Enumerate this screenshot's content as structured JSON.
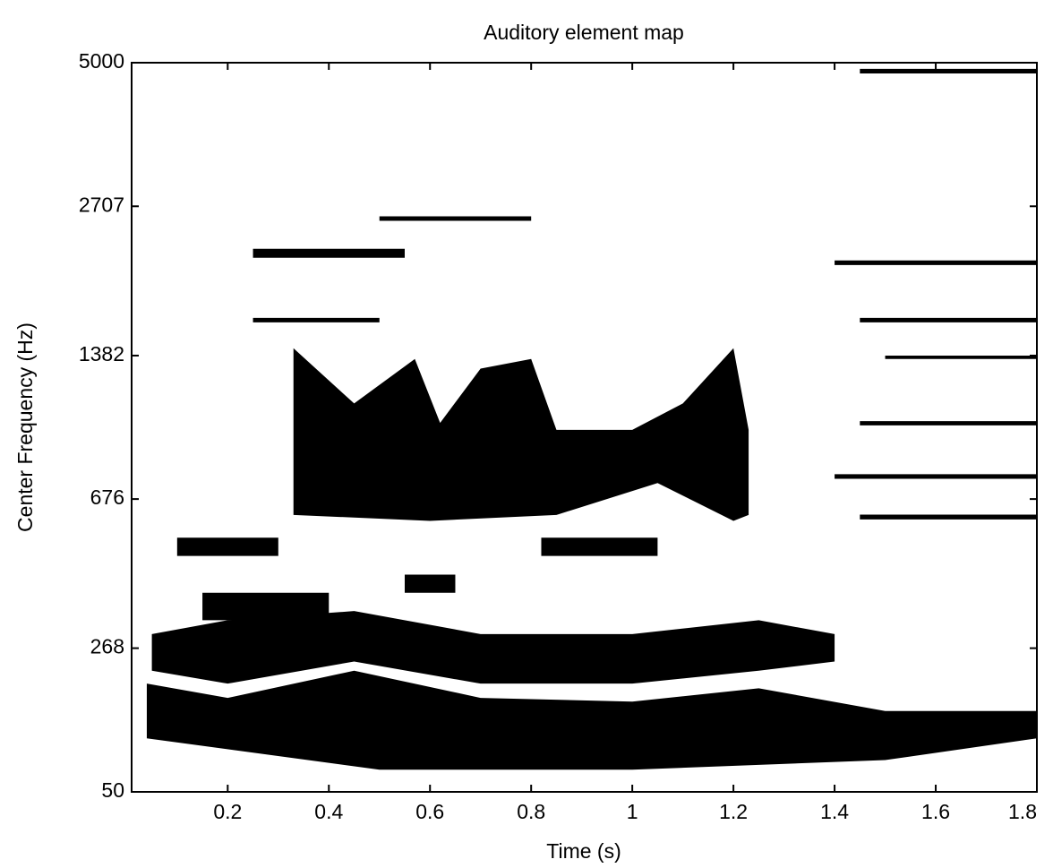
{
  "chart_data": {
    "type": "element-map",
    "title": "Auditory element map",
    "xlabel": "Time (s)",
    "ylabel": "Center Frequency (Hz)",
    "xlim": [
      0.01,
      1.8
    ],
    "xticks": [
      0.2,
      0.4,
      0.6,
      0.8,
      1,
      1.2,
      1.4,
      1.6,
      1.8
    ],
    "ylim": [
      50,
      5000
    ],
    "yticks": [
      50,
      268,
      676,
      1382,
      2707,
      5000
    ],
    "yscale": "erb",
    "color": "#000000",
    "elements": [
      {
        "t": [
          0.04,
          0.2,
          0.45,
          0.7,
          1.0,
          1.25,
          1.5,
          1.8,
          1.8,
          1.5,
          1.0,
          0.5,
          0.04
        ],
        "f": [
          202,
          178,
          225,
          178,
          172,
          194,
          157,
          157,
          117,
          88,
          76,
          76,
          117
        ]
      },
      {
        "t": [
          0.05,
          0.2,
          0.45,
          0.7,
          1.0,
          1.25,
          1.4,
          1.4,
          1.25,
          1.0,
          0.7,
          0.45,
          0.2,
          0.05
        ],
        "f": [
          297,
          327,
          348,
          297,
          297,
          327,
          297,
          242,
          225,
          202,
          202,
          242,
          202,
          225
        ]
      },
      {
        "t": [
          0.33,
          0.33,
          0.45,
          0.57,
          0.62,
          0.7,
          0.8,
          0.85,
          1.0,
          1.1,
          1.2,
          1.23,
          1.23,
          1.2,
          1.05,
          0.85,
          0.6,
          0.33
        ],
        "f": [
          600,
          1430,
          1100,
          1360,
          1000,
          1300,
          1360,
          966,
          966,
          1100,
          1430,
          966,
          620,
          600,
          736,
          620,
          600,
          620
        ]
      },
      {
        "t": [
          0.1,
          0.3,
          0.3,
          0.1
        ],
        "f": [
          546,
          546,
          491,
          491
        ]
      },
      {
        "t": [
          0.15,
          0.4,
          0.4,
          0.15
        ],
        "f": [
          392,
          392,
          327,
          327
        ]
      },
      {
        "t": [
          0.82,
          1.05,
          1.05,
          0.82
        ],
        "f": [
          546,
          546,
          491,
          491
        ]
      },
      {
        "t": [
          0.55,
          0.65,
          0.65,
          0.55
        ],
        "f": [
          439,
          439,
          392,
          392
        ]
      },
      {
        "t": [
          1.45,
          1.8,
          1.8,
          1.45
        ],
        "f": [
          4872,
          4872,
          4778,
          4778
        ]
      },
      {
        "t": [
          1.4,
          1.8,
          1.8,
          1.4
        ],
        "f": [
          2133,
          2133,
          2089,
          2089
        ]
      },
      {
        "t": [
          1.45,
          1.8,
          1.8,
          1.45
        ],
        "f": [
          1646,
          1646,
          1612,
          1612
        ]
      },
      {
        "t": [
          1.5,
          1.8,
          1.8,
          1.5
        ],
        "f": [
          1382,
          1382,
          1360,
          1360
        ]
      },
      {
        "t": [
          1.45,
          1.8,
          1.8,
          1.45
        ],
        "f": [
          1009,
          1009,
          988,
          988
        ]
      },
      {
        "t": [
          1.4,
          1.8,
          1.8,
          1.4
        ],
        "f": [
          771,
          771,
          753,
          753
        ]
      },
      {
        "t": [
          1.45,
          1.8,
          1.8,
          1.45
        ],
        "f": [
          621,
          621,
          605,
          605
        ]
      },
      {
        "t": [
          0.25,
          0.55,
          0.55,
          0.25
        ],
        "f": [
          2246,
          2246,
          2158,
          2158
        ]
      },
      {
        "t": [
          0.25,
          0.5,
          0.5,
          0.25
        ],
        "f": [
          1646,
          1646,
          1612,
          1612
        ]
      },
      {
        "t": [
          0.5,
          0.8,
          0.8,
          0.5
        ],
        "f": [
          2591,
          2591,
          2540,
          2540
        ]
      }
    ]
  }
}
